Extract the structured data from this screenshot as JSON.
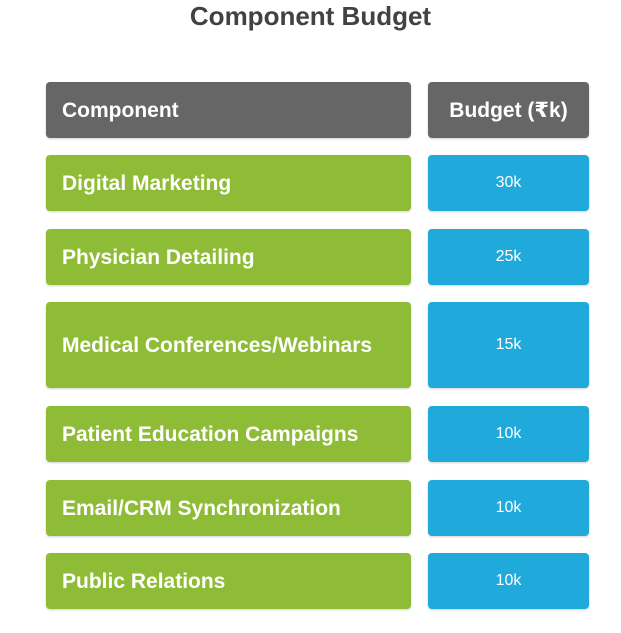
{
  "colors": {
    "header_bg": "#666666",
    "component_bg": "#8fbc37",
    "budget_bg": "#1faadb",
    "title_color": "#424242"
  },
  "chart_data": {
    "type": "table",
    "title": "Component Budget",
    "columns": [
      "Component",
      "Budget (₹k)"
    ],
    "rows": [
      {
        "component": "Digital Marketing",
        "budget": "30k"
      },
      {
        "component": "Physician Detailing",
        "budget": "25k"
      },
      {
        "component": "Medical Conferences/Webinars",
        "budget": "15k"
      },
      {
        "component": "Patient Education Campaigns",
        "budget": "10k"
      },
      {
        "component": "Email/CRM Synchronization",
        "budget": "10k"
      },
      {
        "component": "Public Relations",
        "budget": "10k"
      }
    ]
  }
}
